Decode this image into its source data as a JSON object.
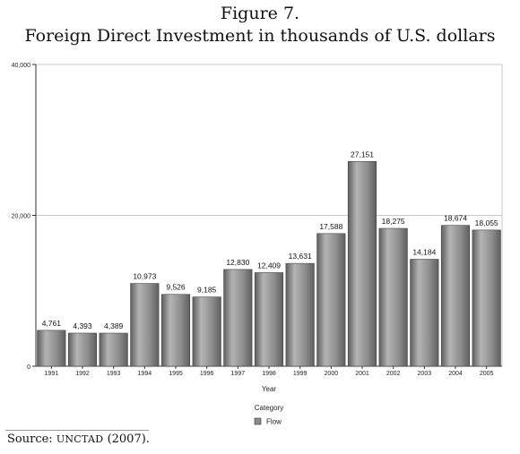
{
  "figure": {
    "title_line1": "Figure 7.",
    "title_line2": "Foreign Direct Investment in thousands of U.S. dollars"
  },
  "source": {
    "prefix": "Source: ",
    "org": "UNCTAD",
    "suffix": " (2007)."
  },
  "chart_data": {
    "type": "bar",
    "title": "Foreign Direct Investment in thousands of U.S. dollars",
    "xlabel": "Year",
    "ylabel": "",
    "categories": [
      "1991",
      "1992",
      "1993",
      "1994",
      "1995",
      "1996",
      "1997",
      "1998",
      "1999",
      "2000",
      "2001",
      "2002",
      "2003",
      "2004",
      "2005"
    ],
    "series": [
      {
        "name": "Flow",
        "values": [
          4761,
          4393,
          4389,
          10973,
          9526,
          9185,
          12830,
          12409,
          13631,
          17588,
          27151,
          18275,
          14184,
          18674,
          18055
        ],
        "labels": [
          "4,761",
          "4,393",
          "4,389",
          "10,973",
          "9,526",
          "9,185",
          "12,830",
          "12,409",
          "13,631",
          "17,588",
          "27,151",
          "18,275",
          "14,184",
          "18,674",
          "18,055"
        ]
      }
    ],
    "ylim": [
      0,
      40000
    ],
    "yticks": [
      0,
      20000,
      40000
    ],
    "ytick_labels": [
      "0",
      "20,000",
      "40,000"
    ],
    "grid": true,
    "legend": {
      "title": "Category",
      "position": "bottom-center"
    },
    "colors": {
      "bar": "#8c8c8c",
      "bar_dark": "#5e5e5e",
      "bar_light": "#b4b4b4",
      "grid": "#c8c8c8"
    }
  }
}
